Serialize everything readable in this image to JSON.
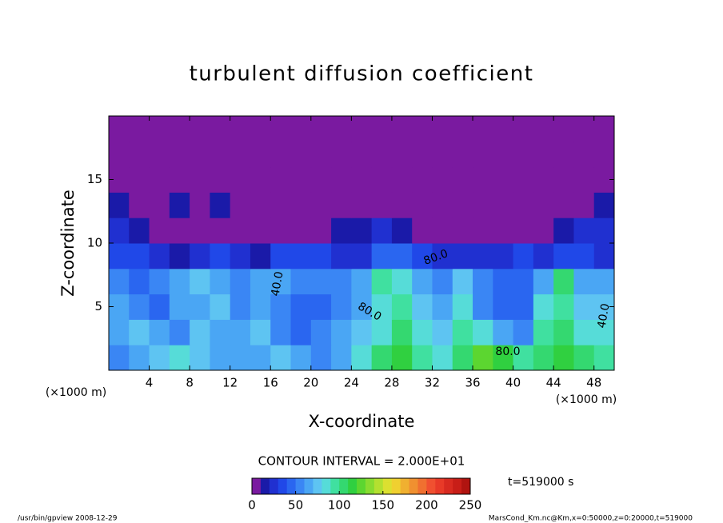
{
  "chart_data": {
    "type": "heatmap",
    "title": "turbulent diffusion coefficient",
    "xlabel": "X-coordinate",
    "ylabel": "Z-coordinate",
    "xunit": "(×1000 m)",
    "yunit": "(×1000 m)",
    "xlim": [
      0,
      50
    ],
    "ylim": [
      0,
      20
    ],
    "xticks": [
      4,
      8,
      12,
      16,
      20,
      24,
      28,
      32,
      36,
      40,
      44,
      48
    ],
    "yticks": [
      5,
      10,
      15
    ],
    "xbins": [
      0,
      2,
      4,
      6,
      8,
      10,
      12,
      14,
      16,
      18,
      20,
      22,
      24,
      26,
      28,
      30,
      32,
      34,
      36,
      38,
      40,
      42,
      44,
      46,
      48,
      50
    ],
    "ybins": [
      0,
      2,
      4,
      6,
      8,
      10,
      12,
      14,
      16,
      18,
      20
    ],
    "z": [
      [
        50,
        60,
        70,
        80,
        70,
        60,
        60,
        60,
        70,
        60,
        50,
        60,
        80,
        100,
        110,
        90,
        80,
        100,
        120,
        110,
        90,
        100,
        110,
        100,
        90
      ],
      [
        60,
        70,
        60,
        50,
        70,
        60,
        60,
        70,
        50,
        40,
        50,
        60,
        70,
        80,
        100,
        80,
        70,
        90,
        80,
        60,
        50,
        90,
        100,
        80,
        80
      ],
      [
        60,
        50,
        40,
        60,
        60,
        70,
        50,
        60,
        50,
        40,
        40,
        50,
        60,
        80,
        90,
        70,
        60,
        80,
        50,
        40,
        40,
        80,
        90,
        70,
        70
      ],
      [
        50,
        40,
        50,
        60,
        70,
        60,
        50,
        60,
        60,
        50,
        50,
        50,
        60,
        90,
        80,
        60,
        50,
        70,
        50,
        40,
        40,
        60,
        100,
        60,
        60
      ],
      [
        30,
        30,
        20,
        10,
        20,
        30,
        20,
        10,
        30,
        30,
        30,
        20,
        20,
        40,
        40,
        30,
        20,
        20,
        20,
        20,
        30,
        20,
        30,
        30,
        20
      ],
      [
        20,
        10,
        5,
        5,
        5,
        5,
        5,
        5,
        5,
        5,
        5,
        10,
        10,
        20,
        10,
        5,
        5,
        5,
        5,
        5,
        5,
        5,
        10,
        20,
        20
      ],
      [
        10,
        5,
        5,
        10,
        5,
        10,
        5,
        5,
        5,
        5,
        5,
        5,
        5,
        5,
        5,
        5,
        5,
        5,
        5,
        5,
        5,
        5,
        5,
        5,
        10
      ],
      [
        5,
        5,
        5,
        5,
        5,
        5,
        5,
        5,
        5,
        5,
        5,
        5,
        5,
        5,
        5,
        5,
        5,
        5,
        5,
        5,
        5,
        5,
        5,
        5,
        5
      ],
      [
        5,
        5,
        5,
        5,
        5,
        5,
        5,
        5,
        5,
        5,
        5,
        5,
        5,
        5,
        5,
        5,
        5,
        5,
        5,
        5,
        5,
        5,
        5,
        5,
        5
      ],
      [
        5,
        5,
        5,
        5,
        5,
        5,
        5,
        5,
        5,
        5,
        5,
        5,
        5,
        5,
        5,
        5,
        5,
        5,
        5,
        5,
        5,
        5,
        5,
        5,
        5
      ]
    ],
    "clim": [
      0,
      250
    ],
    "colors": [
      "#7a1aa0",
      "#1a1aa8",
      "#2030d0",
      "#2048e8",
      "#2a66f0",
      "#3a86f4",
      "#4aa6f4",
      "#5ec4f2",
      "#56dcd8",
      "#40e0a0",
      "#34d870",
      "#30d040",
      "#5cd630",
      "#88dc30",
      "#b4e030",
      "#dce030",
      "#f0d030",
      "#f0b030",
      "#f09030",
      "#f07030",
      "#f05030",
      "#e83a28",
      "#d82a20",
      "#c81e18",
      "#b01410"
    ],
    "colorbar_ticks": [
      0,
      50,
      100,
      150,
      200,
      250
    ],
    "contour_interval": "CONTOUR INTERVAL = 2.000E+01",
    "time_label": "t=519000 s",
    "annotations": [
      "40.0",
      "80.0",
      "80.0",
      "80.0",
      "40.0"
    ],
    "footer_left": "/usr/bin/gpview  2008-12-29",
    "footer_right": "MarsCond_Km.nc@Km,x=0:50000,z=0:20000,t=519000"
  }
}
